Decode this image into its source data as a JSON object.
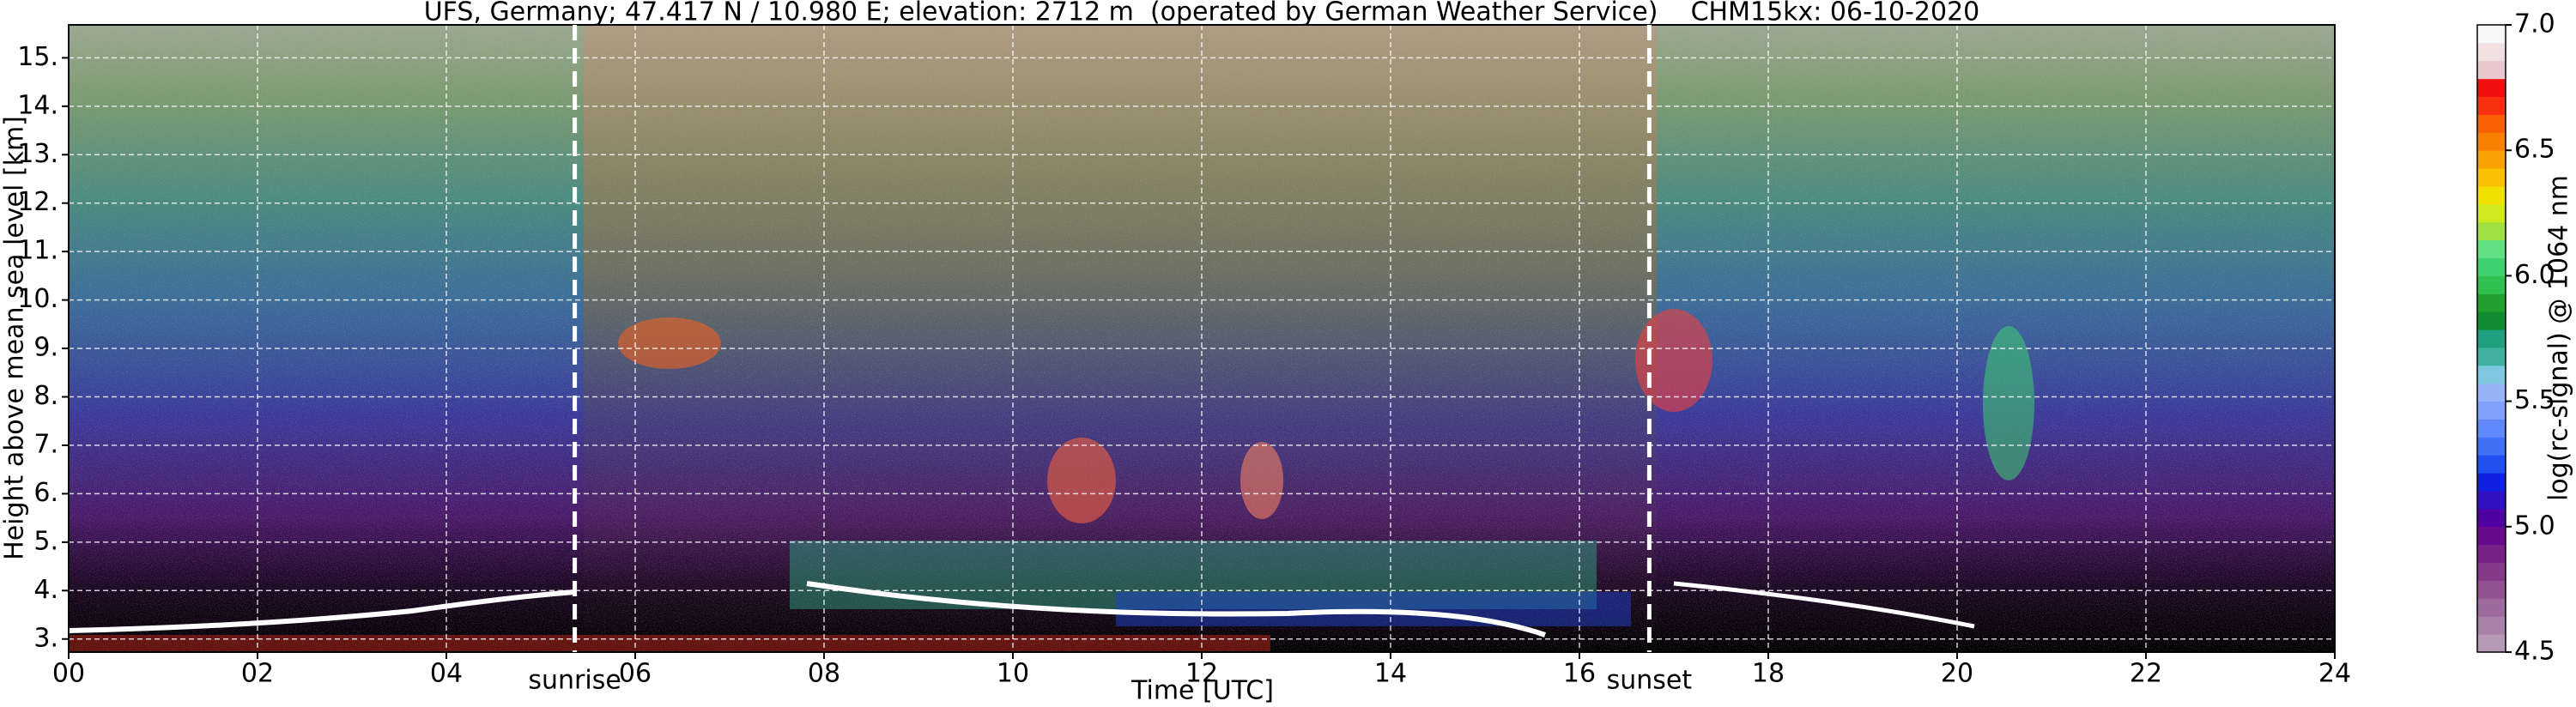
{
  "chart_data": {
    "type": "heatmap",
    "title": "UFS, Germany; 47.417 N / 10.980 E; elevation: 2712 m  (operated by German Weather Service)    CHM15kx: 06-10-2020",
    "x_label": "Time [UTC]",
    "y_label": "Height above mean sea level [km]",
    "xlim": [
      0,
      24
    ],
    "xticks": [
      {
        "value": 0,
        "label": "00"
      },
      {
        "value": 2,
        "label": "02"
      },
      {
        "value": 4,
        "label": "04"
      },
      {
        "value": 6,
        "label": "06"
      },
      {
        "value": 8,
        "label": "08"
      },
      10,
      12,
      14,
      16,
      18,
      20,
      22,
      24
    ],
    "ylim": [
      2.73,
      15.68
    ],
    "yticks": [
      {
        "value": 3,
        "label": "3."
      },
      {
        "value": 4,
        "label": "4."
      },
      {
        "value": 5,
        "label": "5."
      },
      {
        "value": 6,
        "label": "6."
      },
      {
        "value": 7,
        "label": "7."
      },
      {
        "value": 8,
        "label": "8."
      },
      {
        "value": 9,
        "label": "9."
      },
      {
        "value": 10,
        "label": "10."
      },
      {
        "value": 11,
        "label": "11."
      },
      {
        "value": 12,
        "label": "12."
      },
      {
        "value": 13,
        "label": "13."
      },
      {
        "value": 14,
        "label": "14."
      },
      {
        "value": 15,
        "label": "15."
      }
    ],
    "grid": true,
    "annotations": [
      {
        "text": "sunrise",
        "x": 5.36
      },
      {
        "text": "sunset",
        "x": 16.74
      }
    ],
    "colorbar": {
      "label": "log(rc-signal) @ 1064 nm",
      "lim": [
        4.5,
        7.0
      ],
      "ticks": [
        4.5,
        {
          "value": 5.0,
          "label": "5.0"
        },
        5.5,
        {
          "value": 6.0,
          "label": "6.0"
        },
        6.5,
        {
          "value": 7.0,
          "label": "7.0"
        }
      ],
      "colors": [
        "#b49ab4",
        "#a882a8",
        "#9c6a9c",
        "#905290",
        "#843a88",
        "#782288",
        "#6a0a8c",
        "#5000a0",
        "#3010c0",
        "#1020e0",
        "#2050f0",
        "#4070f8",
        "#6088fc",
        "#80a0fc",
        "#98b4f8",
        "#80c8e0",
        "#40b0a0",
        "#20a080",
        "#108c30",
        "#20a030",
        "#30c050",
        "#40d070",
        "#60e080",
        "#a0e040",
        "#d0e820",
        "#f0e000",
        "#f8c000",
        "#f8a000",
        "#f88000",
        "#f86000",
        "#f83010",
        "#f01010",
        "#e8c8cc",
        "#f0e0e0",
        "#f8f8f8"
      ]
    }
  }
}
